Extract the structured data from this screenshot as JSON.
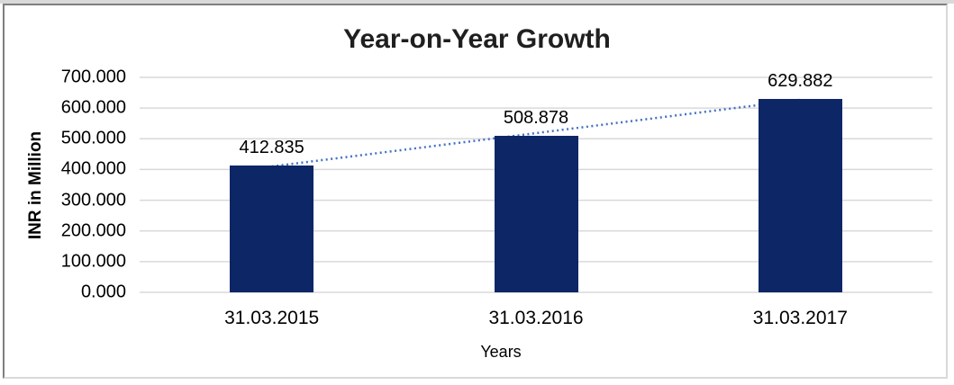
{
  "chart_data": {
    "type": "bar",
    "title": "Year-on-Year Growth",
    "categories": [
      "31.03.2015",
      "31.03.2016",
      "31.03.2017"
    ],
    "values": [
      412.835,
      508.878,
      629.882
    ],
    "value_labels": [
      "412.835",
      "508.878",
      "629.882"
    ],
    "xlabel": "Years",
    "ylabel": "INR in Million",
    "ylim": [
      0,
      700
    ],
    "ytick_step": 100,
    "ytick_labels": [
      "0.000",
      "100.000",
      "200.000",
      "300.000",
      "400.000",
      "500.000",
      "600.000",
      "700.000"
    ],
    "grid": true,
    "legend": "none",
    "trendline": {
      "type": "linear",
      "style": "dotted",
      "color": "#4472C4"
    },
    "colors": {
      "bar": "#0D2666",
      "gridline": "#D9D9D9",
      "title_text": "#1F1F1F",
      "axis_text": "#000000",
      "frame_dark": "#7F7F7F",
      "frame_light": "#D9D9D9",
      "background": "#FFFFFF"
    }
  }
}
